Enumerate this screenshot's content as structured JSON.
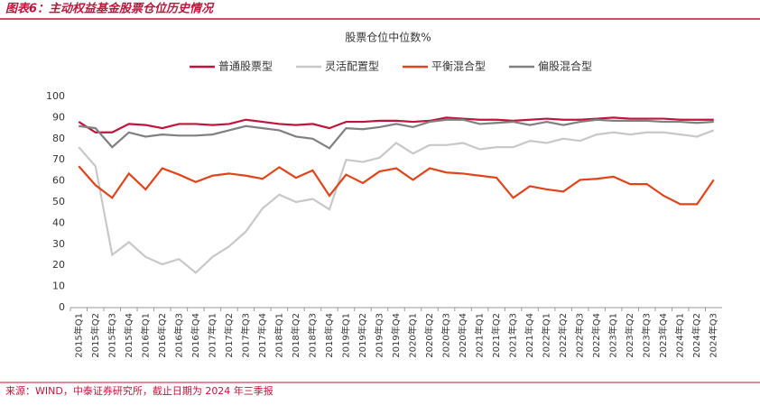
{
  "header": {
    "title": "图表6：主动权益基金股票仓位历史情况"
  },
  "chart_data": {
    "type": "line",
    "title": "股票仓位中位数%",
    "categories": [
      "2015年Q1",
      "2015年Q2",
      "2015年Q3",
      "2015年Q4",
      "2016年Q1",
      "2016年Q2",
      "2016年Q3",
      "2016年Q4",
      "2017年Q1",
      "2017年Q2",
      "2017年Q3",
      "2017年Q4",
      "2018年Q1",
      "2018年Q2",
      "2018年Q3",
      "2018年Q4",
      "2019年Q1",
      "2019年Q2",
      "2019年Q3",
      "2019年Q4",
      "2020年Q1",
      "2020年Q2",
      "2020年Q3",
      "2020年Q4",
      "2021年Q1",
      "2021年Q2",
      "2021年Q3",
      "2021年Q4",
      "2022年Q1",
      "2022年Q2",
      "2022年Q3",
      "2022年Q4",
      "2023年Q1",
      "2023年Q2",
      "2023年Q3",
      "2023年Q4",
      "2024年Q1",
      "2024年Q2",
      "2024年Q3"
    ],
    "series": [
      {
        "name": "普通股票型",
        "color": "#c0143c",
        "values": [
          88,
          83,
          83,
          87,
          86.5,
          85,
          87,
          87,
          86.5,
          87,
          89,
          88,
          87,
          86.5,
          87,
          85,
          88,
          88,
          88.5,
          88.5,
          88,
          88.5,
          90,
          89.5,
          89,
          89,
          88.5,
          89,
          89.5,
          89,
          89,
          89.5,
          90,
          89.5,
          89.5,
          89.5,
          89,
          89,
          89
        ]
      },
      {
        "name": "灵活配置型",
        "color": "#c8c8c8",
        "values": [
          76,
          67,
          25,
          31,
          24,
          20.5,
          23,
          16.5,
          24,
          29,
          36,
          47,
          53.5,
          50,
          51.5,
          46.5,
          70,
          69,
          71,
          78,
          73,
          77,
          77,
          78,
          75,
          76,
          76,
          79,
          78,
          80,
          79,
          82,
          83,
          82,
          83,
          83,
          82,
          81,
          84
        ]
      },
      {
        "name": "平衡混合型",
        "color": "#e0441a",
        "values": [
          67,
          58,
          52,
          63.5,
          56,
          66,
          63,
          59.5,
          62.5,
          63.5,
          62.5,
          61,
          66.5,
          61.5,
          65,
          53,
          63,
          59,
          64.5,
          66,
          60.5,
          66,
          64,
          63.5,
          62.5,
          61.5,
          52,
          57.5,
          56,
          55,
          60.5,
          61,
          62,
          58.5,
          58.5,
          53,
          49,
          49,
          60.5
        ]
      },
      {
        "name": "偏股混合型",
        "color": "#808080",
        "values": [
          86,
          85,
          76,
          83,
          81,
          82,
          81.5,
          81.5,
          82,
          84,
          86,
          85,
          84,
          81,
          80,
          75.5,
          85,
          84.5,
          85.5,
          87,
          85.5,
          88,
          89,
          89,
          87,
          87.5,
          88,
          86.5,
          88,
          86.5,
          88,
          89,
          88.5,
          88.5,
          88.5,
          88,
          88,
          87.5,
          88
        ]
      }
    ],
    "ylim": [
      0,
      100
    ],
    "yticks": [
      0,
      10,
      20,
      30,
      40,
      50,
      60,
      70,
      80,
      90,
      100
    ],
    "legend": "top"
  },
  "footer": {
    "source": "来源：WIND，中泰证券研究所，截止日期为 2024 年三季报"
  }
}
